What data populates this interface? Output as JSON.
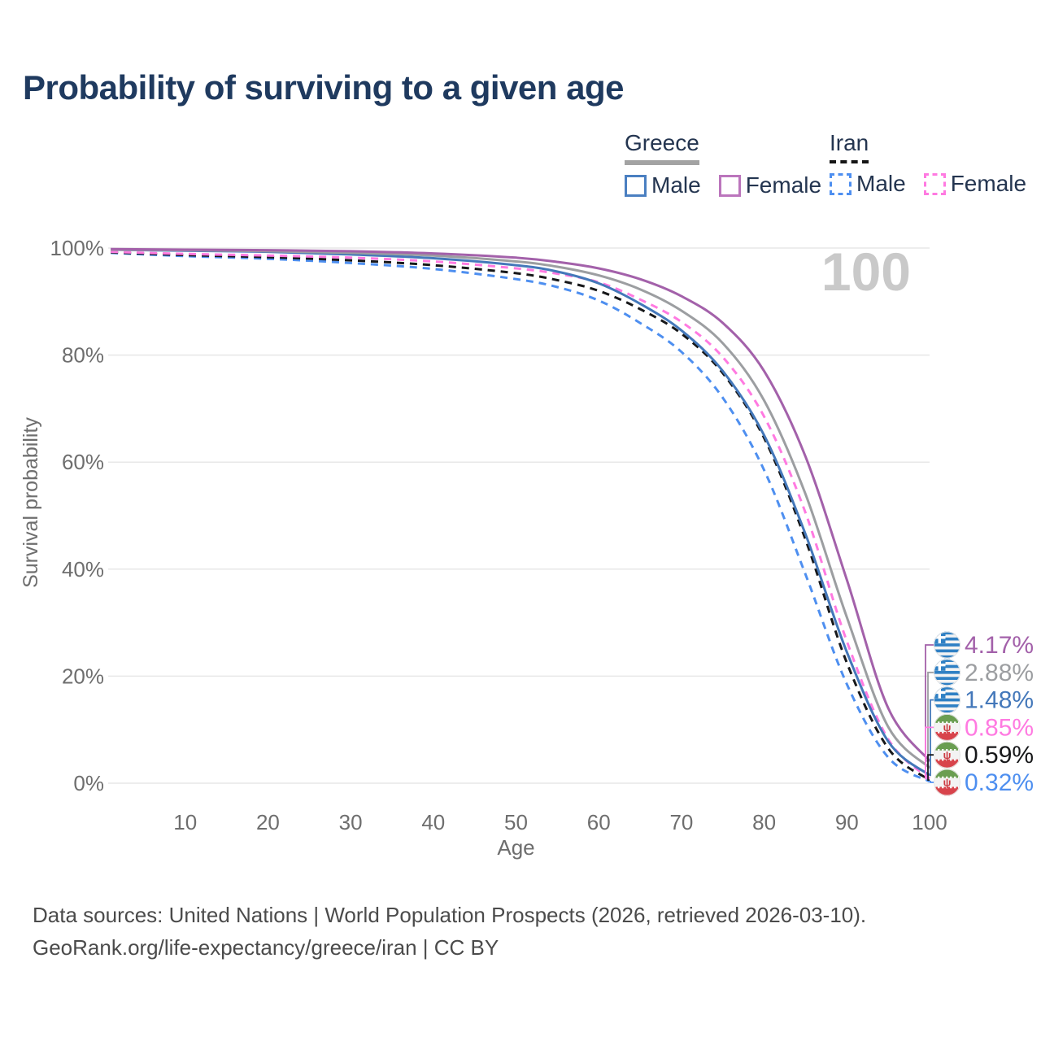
{
  "title": "Probability of surviving to a given age",
  "watermark": "100",
  "legend": {
    "groups": [
      {
        "country": "Greece",
        "line": {
          "style": "solid",
          "color": "#a3a3a3"
        },
        "items": [
          {
            "label": "Male",
            "color": "#4a7fc1",
            "dash": false
          },
          {
            "label": "Female",
            "color": "#bb75bc",
            "dash": false
          }
        ]
      },
      {
        "country": "Iran",
        "line": {
          "style": "dashed",
          "color": "#151515"
        },
        "items": [
          {
            "label": "Male",
            "color": "#4e8ff0",
            "dash": true
          },
          {
            "label": "Female",
            "color": "#ff7ae1",
            "dash": true
          }
        ]
      }
    ]
  },
  "chart_data": {
    "type": "line",
    "title": "Probability of surviving to a given age",
    "xlabel": "Age",
    "ylabel": "Survival probability",
    "xlim": [
      0,
      100
    ],
    "ylim": [
      0,
      100
    ],
    "x_ticks": [
      10,
      20,
      30,
      40,
      50,
      60,
      70,
      80,
      90,
      100
    ],
    "y_ticks": [
      0,
      20,
      40,
      60,
      80,
      100
    ],
    "y_tick_labels": [
      "0%",
      "20%",
      "40%",
      "60%",
      "80%",
      "100%"
    ],
    "grid": "horizontal",
    "legend_position": "top-right",
    "watermark_age": "100",
    "x": [
      1,
      10,
      20,
      30,
      40,
      50,
      55,
      60,
      65,
      70,
      75,
      80,
      85,
      90,
      95,
      100
    ],
    "series": [
      {
        "id": "greece-female",
        "name": "Greece Female",
        "country": "greece",
        "color": "#a361aa",
        "dashed": false,
        "end_label": "4.17%",
        "end_value": 4.17,
        "values": [
          99.8,
          99.7,
          99.6,
          99.4,
          99.0,
          98.2,
          97.4,
          96.2,
          94.2,
          91.0,
          86.0,
          77.0,
          61.0,
          38.0,
          14.0,
          4.17
        ]
      },
      {
        "id": "greece-both",
        "name": "Greece Both sexes",
        "country": "greece",
        "color": "#9c9ea1",
        "dashed": false,
        "end_label": "2.88%",
        "end_value": 2.88,
        "values": [
          99.7,
          99.6,
          99.4,
          99.1,
          98.6,
          97.5,
          96.5,
          94.9,
          92.3,
          88.3,
          82.2,
          71.5,
          54.0,
          31.0,
          10.5,
          2.88
        ]
      },
      {
        "id": "greece-male",
        "name": "Greece Male",
        "country": "greece",
        "color": "#4478ba",
        "dashed": false,
        "end_label": "1.48%",
        "end_value": 1.48,
        "values": [
          99.7,
          99.5,
          99.3,
          98.8,
          98.1,
          96.8,
          95.6,
          93.4,
          89.6,
          84.6,
          77.0,
          65.0,
          46.5,
          24.5,
          7.8,
          1.48
        ]
      },
      {
        "id": "iran-female",
        "name": "Iran Female",
        "country": "iran",
        "color": "#ff7ae1",
        "dashed": true,
        "end_label": "0.85%",
        "end_value": 0.85,
        "values": [
          99.3,
          98.9,
          98.6,
          98.2,
          97.5,
          96.2,
          95.2,
          93.6,
          90.4,
          86.2,
          79.6,
          68.5,
          50.5,
          26.5,
          8.2,
          0.85
        ]
      },
      {
        "id": "iran-both",
        "name": "Iran Both sexes",
        "country": "iran",
        "color": "#17181a",
        "dashed": true,
        "end_label": "0.59%",
        "end_value": 0.59,
        "values": [
          99.2,
          98.7,
          98.3,
          97.7,
          96.8,
          95.3,
          94.0,
          92.0,
          88.6,
          84.0,
          76.6,
          64.5,
          45.5,
          22.5,
          6.5,
          0.59
        ]
      },
      {
        "id": "iran-male",
        "name": "Iran Male",
        "country": "iran",
        "color": "#4e8ff0",
        "dashed": true,
        "end_label": "0.32%",
        "end_value": 0.32,
        "values": [
          99.1,
          98.5,
          98.0,
          97.2,
          96.1,
          94.2,
          92.7,
          90.2,
          86.0,
          80.6,
          72.0,
          58.5,
          39.0,
          18.5,
          4.8,
          0.32
        ]
      }
    ]
  },
  "footer": {
    "line1": "Data sources: United Nations | World Population Prospects (2026, retrieved 2026-03-10).",
    "line2": "GeoRank.org/life-expectancy/greece/iran | CC BY"
  },
  "colors": {
    "title": "#1f3a5f",
    "axis_text": "#6e6e6e",
    "gridline": "#e7e7e7",
    "watermark": "#c9c9c9",
    "footer_text": "#4b4b4b"
  }
}
